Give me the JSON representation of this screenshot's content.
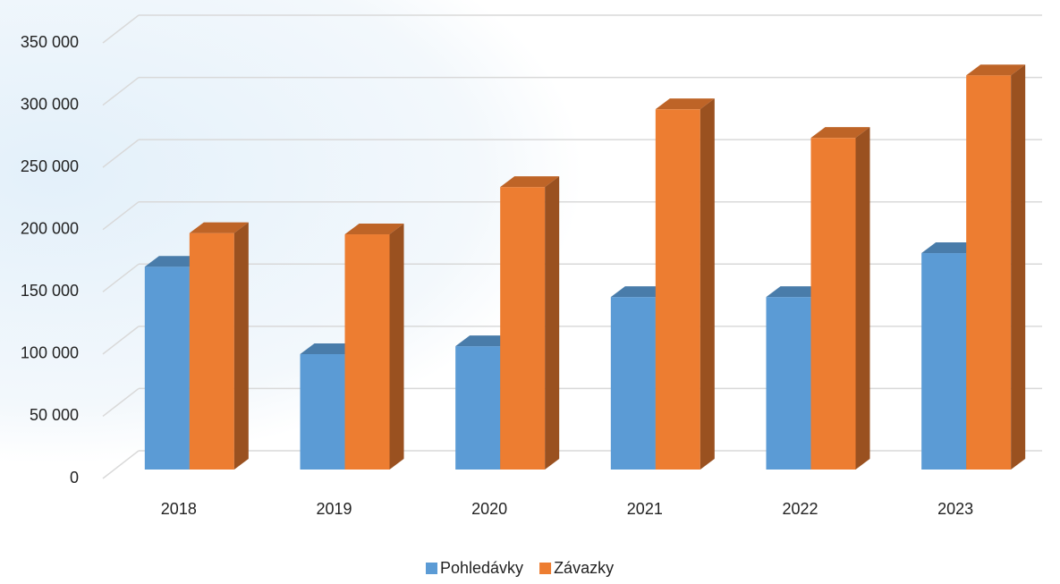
{
  "chart_data": {
    "type": "bar3d",
    "categories": [
      "2018",
      "2019",
      "2020",
      "2021",
      "2022",
      "2023"
    ],
    "series": [
      {
        "name": "Pohledávky",
        "color": "#5b9bd5",
        "values": [
          163000,
          92700,
          99100,
          138600,
          138600,
          173900
        ]
      },
      {
        "name": "Závazky",
        "color": "#ed7d31",
        "values": [
          190000,
          189000,
          227000,
          289500,
          266500,
          316800
        ]
      }
    ],
    "ylim": [
      0,
      350000
    ],
    "yticks": [
      {
        "value": 0,
        "label": "0"
      },
      {
        "value": 50000,
        "label": "50 000"
      },
      {
        "value": 100000,
        "label": "100 000"
      },
      {
        "value": 150000,
        "label": "150 000"
      },
      {
        "value": 200000,
        "label": "200 000"
      },
      {
        "value": 250000,
        "label": "250 000"
      },
      {
        "value": 300000,
        "label": "300 000"
      },
      {
        "value": 350000,
        "label": "350 000"
      }
    ],
    "grid": true,
    "legend": "bottom"
  }
}
